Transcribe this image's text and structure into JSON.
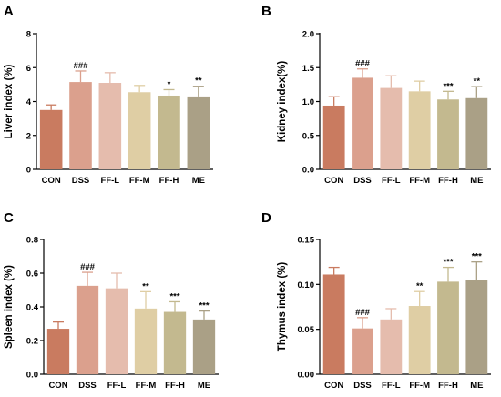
{
  "chart_data": [
    {
      "type": "bar",
      "panel_label": "A",
      "ylabel": "Liver index (%)",
      "categories": [
        "CON",
        "DSS",
        "FF-L",
        "FF-M",
        "FF-H",
        "ME"
      ],
      "values": [
        3.5,
        5.15,
        5.1,
        4.55,
        4.35,
        4.3
      ],
      "errors": [
        0.3,
        0.65,
        0.6,
        0.4,
        0.35,
        0.6
      ],
      "significance": [
        "",
        "###",
        "",
        "",
        "*",
        "**"
      ],
      "ylim": [
        0,
        8
      ],
      "yticks": [
        "0",
        "2",
        "4",
        "6",
        "8"
      ],
      "colors": [
        "#c97b60",
        "#dba08d",
        "#e5bcad",
        "#dfcea4",
        "#c3b98f",
        "#aaa086"
      ]
    },
    {
      "type": "bar",
      "panel_label": "B",
      "ylabel": "Kidney index(%)",
      "categories": [
        "CON",
        "DSS",
        "FF-L",
        "FF-M",
        "FF-H",
        "ME"
      ],
      "values": [
        0.94,
        1.35,
        1.2,
        1.15,
        1.03,
        1.05
      ],
      "errors": [
        0.13,
        0.13,
        0.18,
        0.15,
        0.12,
        0.17
      ],
      "significance": [
        "",
        "###",
        "",
        "",
        "***",
        "**"
      ],
      "ylim": [
        0,
        2.0
      ],
      "yticks": [
        "0.0",
        "0.5",
        "1.0",
        "1.5",
        "2.0"
      ],
      "colors": [
        "#c97b60",
        "#dba08d",
        "#e5bcad",
        "#dfcea4",
        "#c3b98f",
        "#aaa086"
      ]
    },
    {
      "type": "bar",
      "panel_label": "C",
      "ylabel": "Spleen index (%)",
      "categories": [
        "CON",
        "DSS",
        "FF-L",
        "FF-M",
        "FF-H",
        "ME"
      ],
      "values": [
        0.27,
        0.525,
        0.51,
        0.39,
        0.37,
        0.325
      ],
      "errors": [
        0.04,
        0.08,
        0.09,
        0.1,
        0.06,
        0.05
      ],
      "significance": [
        "",
        "###",
        "",
        "**",
        "***",
        "***"
      ],
      "ylim": [
        0,
        0.8
      ],
      "yticks": [
        "0.0",
        "0.2",
        "0.4",
        "0.6",
        "0.8"
      ],
      "colors": [
        "#c97b60",
        "#dba08d",
        "#e5bcad",
        "#dfcea4",
        "#c3b98f",
        "#aaa086"
      ]
    },
    {
      "type": "bar",
      "panel_label": "D",
      "ylabel": "Thymus index (%)",
      "categories": [
        "CON",
        "DSS",
        "FF-L",
        "FF-M",
        "FF-H",
        "ME"
      ],
      "values": [
        0.111,
        0.051,
        0.061,
        0.076,
        0.103,
        0.105
      ],
      "errors": [
        0.008,
        0.012,
        0.012,
        0.016,
        0.016,
        0.02
      ],
      "significance": [
        "",
        "###",
        "",
        "**",
        "***",
        "***"
      ],
      "ylim": [
        0,
        0.15
      ],
      "yticks": [
        "0.00",
        "0.05",
        "0.10",
        "0.15"
      ],
      "colors": [
        "#c97b60",
        "#dba08d",
        "#e5bcad",
        "#dfcea4",
        "#c3b98f",
        "#aaa086"
      ]
    }
  ]
}
